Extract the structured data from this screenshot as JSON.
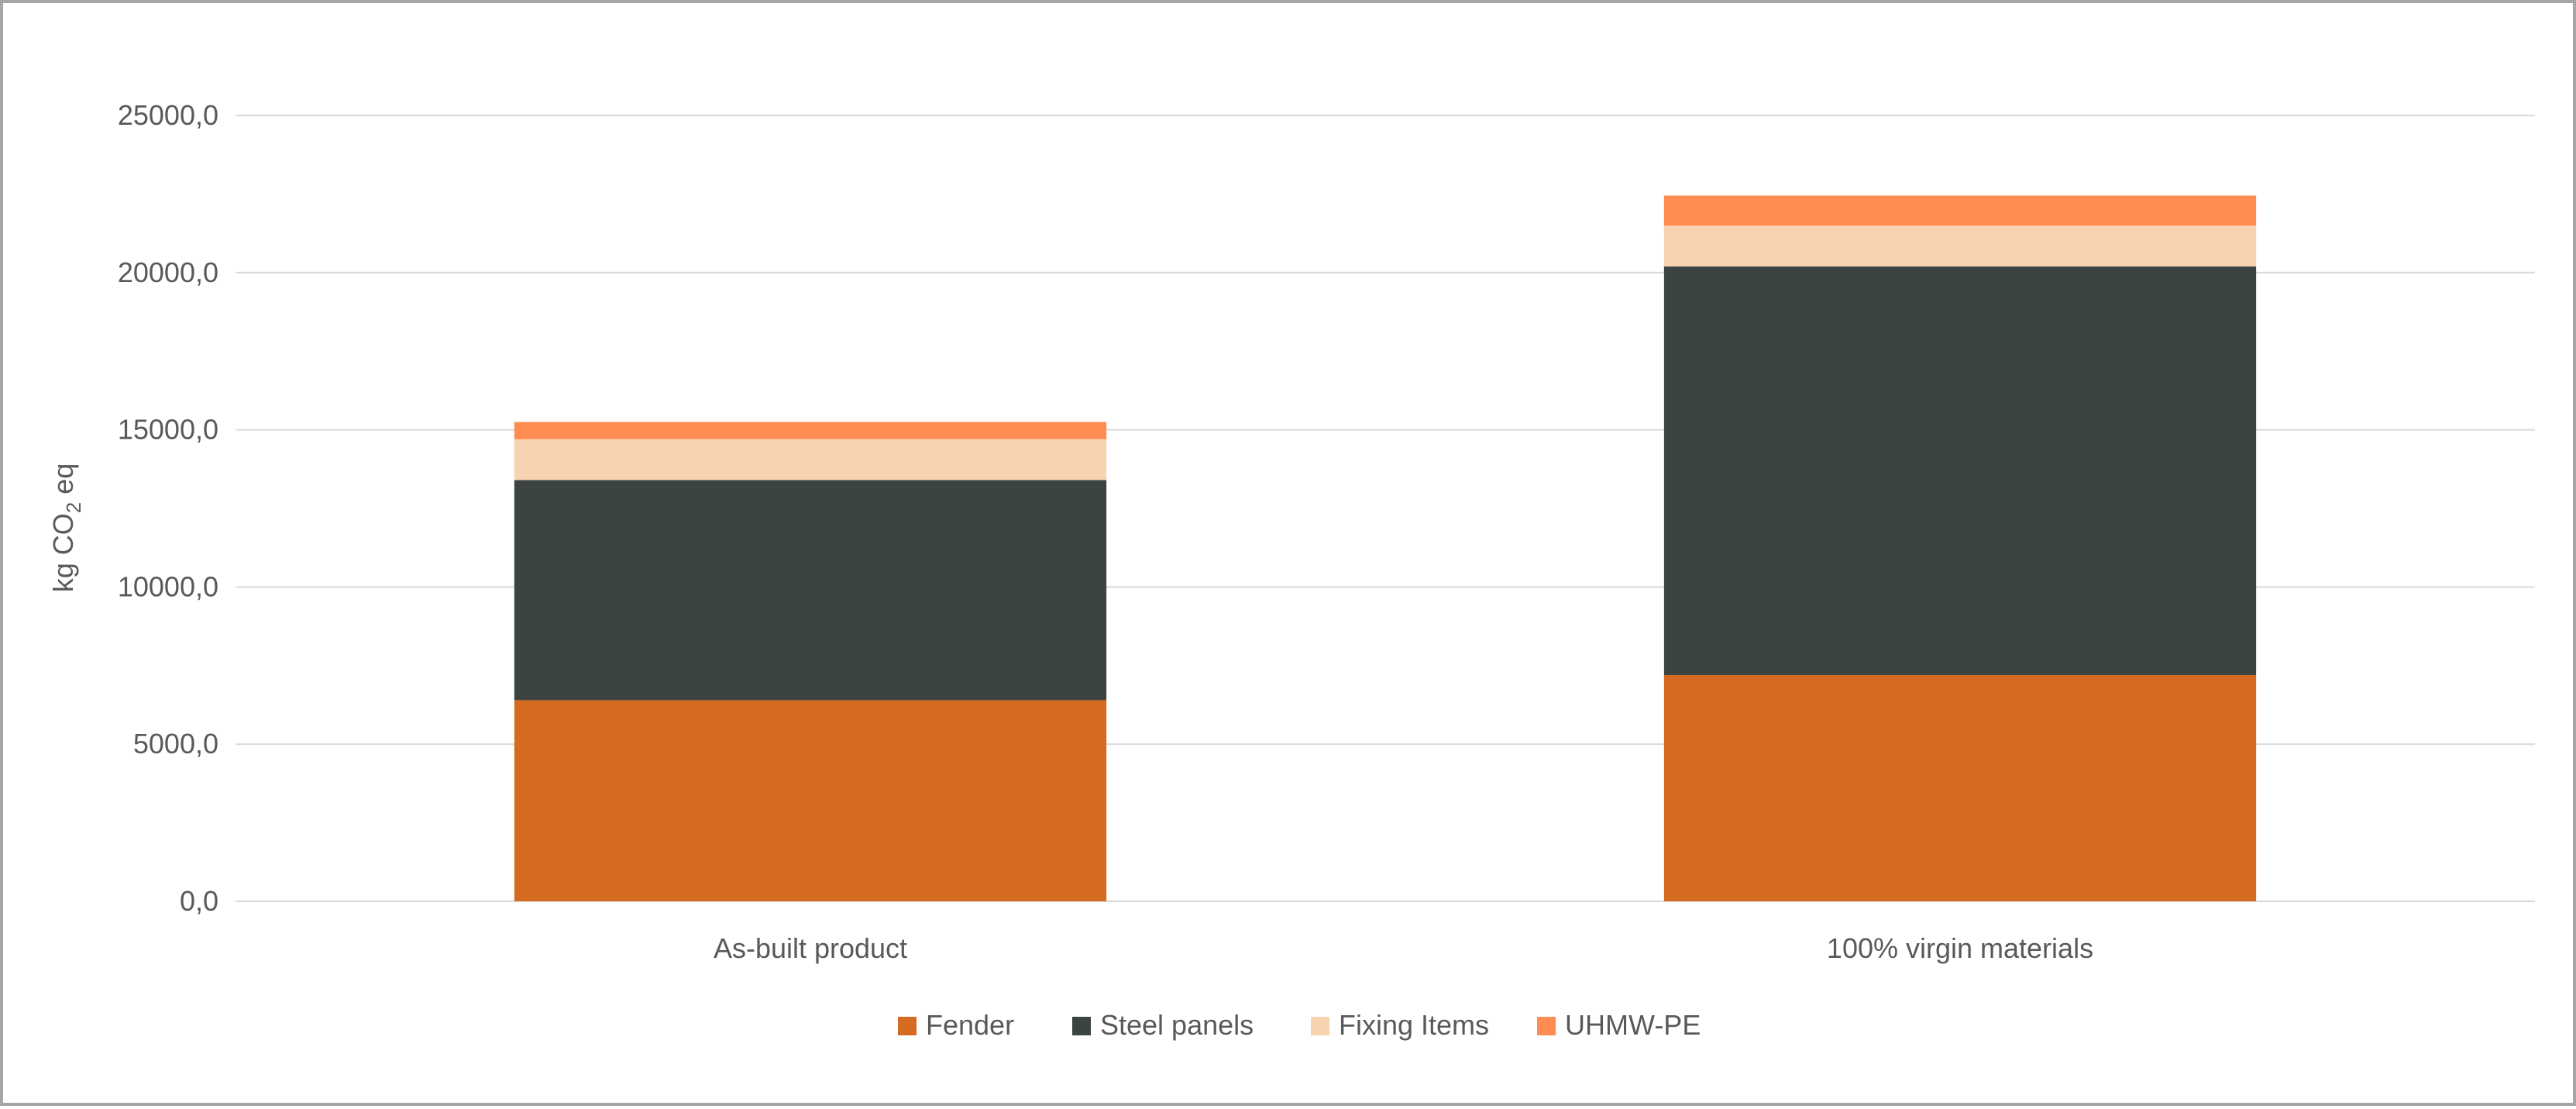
{
  "chart_data": {
    "type": "bar",
    "stacked": true,
    "categories": [
      "As-built product",
      "100% virgin materials"
    ],
    "series": [
      {
        "name": "Fender",
        "color": "#D46B20",
        "values": [
          6400,
          7200
        ]
      },
      {
        "name": "Steel panels",
        "color": "#3C4442",
        "values": [
          7000,
          13000
        ]
      },
      {
        "name": "Fixing Items",
        "color": "#F8D3B0",
        "values": [
          1300,
          1300
        ]
      },
      {
        "name": "UHMW-PE",
        "color": "#FF8C52",
        "values": [
          550,
          950
        ]
      }
    ],
    "title": "",
    "xlabel": "",
    "ylabel": "kg CO2 eq",
    "ylabel_parts": {
      "main": "kg CO",
      "sub": "2",
      "tail": " eq"
    },
    "ylim": [
      0,
      25000
    ],
    "yticks": [
      0,
      5000,
      10000,
      15000,
      20000,
      25000
    ],
    "ytick_labels": [
      "0,0",
      "5000,0",
      "10000,0",
      "15000,0",
      "20000,0",
      "25000,0"
    ],
    "grid": true,
    "legend": "bottom",
    "colors": {
      "grid": "#d9d9d9",
      "text": "#595959",
      "border": "#a6a6a6"
    }
  }
}
